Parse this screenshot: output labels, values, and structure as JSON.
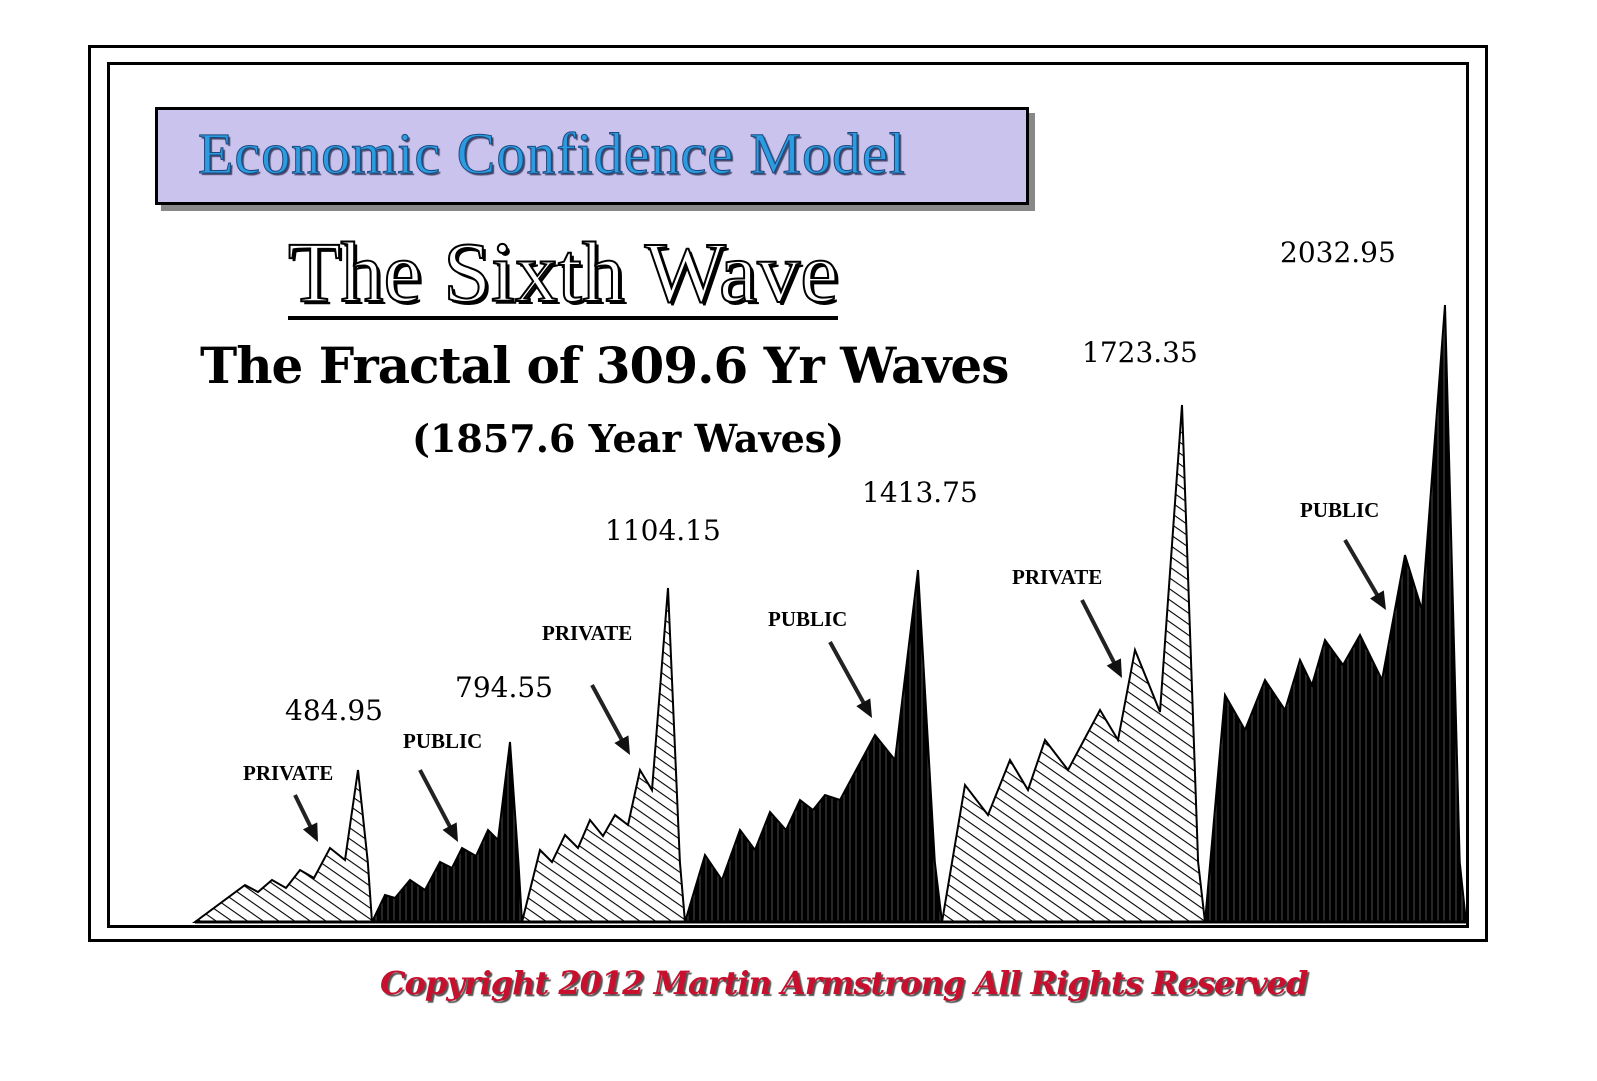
{
  "header": {
    "box_title": "Economic Confidence Model",
    "title": "The Sixth Wave",
    "subtitle": "The Fractal of 309.6 Yr Waves",
    "subtitle2": "(1857.6 Year Waves)"
  },
  "footer": {
    "copyright": "Copyright 2012 Martin Armstrong All Rights Reserved"
  },
  "colors": {
    "title_box": "#c9c3ee",
    "title_text": "#2d9be0",
    "copyright": "#c8102e",
    "public_fill": "#000000"
  },
  "chart_data": {
    "type": "area",
    "title": "The Sixth Wave",
    "grid": false,
    "legend": "none",
    "waves": [
      {
        "peak_label": "484.95",
        "phase": "PRIVATE",
        "fill": "hatched"
      },
      {
        "peak_label": "794.55",
        "phase": "PUBLIC",
        "fill": "solid-black"
      },
      {
        "peak_label": "1104.15",
        "phase": "PRIVATE",
        "fill": "hatched"
      },
      {
        "peak_label": "1413.75",
        "phase": "PUBLIC",
        "fill": "solid-black"
      },
      {
        "peak_label": "1723.35",
        "phase": "PRIVATE",
        "fill": "hatched"
      },
      {
        "peak_label": "2032.95",
        "phase": "PUBLIC",
        "fill": "solid-black"
      }
    ]
  }
}
